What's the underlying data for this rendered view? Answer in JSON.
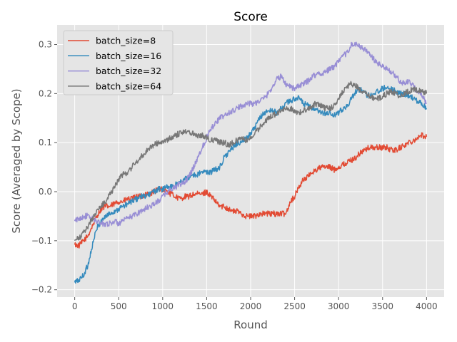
{
  "chart_data": {
    "type": "line",
    "title": "Score",
    "xlabel": "Round",
    "ylabel": "Score (Averaged by Scope)",
    "xlim": [
      -200,
      4200
    ],
    "ylim": [
      -0.215,
      0.34
    ],
    "xticks": [
      0,
      500,
      1000,
      1500,
      2000,
      2500,
      3000,
      3500,
      4000
    ],
    "xtick_labels": [
      "0",
      "500",
      "1000",
      "1500",
      "2000",
      "2500",
      "3000",
      "3500",
      "4000"
    ],
    "yticks": [
      -0.2,
      -0.1,
      0.0,
      0.1,
      0.2,
      0.3
    ],
    "ytick_labels": [
      "−0.2",
      "−0.1",
      "0.0",
      "0.1",
      "0.2",
      "0.3"
    ],
    "grid": true,
    "legend_position": "top-left",
    "series": [
      {
        "name": "batch_size=8",
        "color": "#E24A33",
        "x": [
          0,
          50,
          100,
          150,
          200,
          250,
          300,
          350,
          400,
          450,
          500,
          550,
          600,
          650,
          700,
          750,
          800,
          850,
          900,
          950,
          1000,
          1050,
          1100,
          1150,
          1200,
          1250,
          1300,
          1350,
          1400,
          1450,
          1500,
          1550,
          1600,
          1650,
          1700,
          1750,
          1800,
          1850,
          1900,
          1950,
          2000,
          2050,
          2100,
          2150,
          2200,
          2250,
          2300,
          2350,
          2400,
          2450,
          2500,
          2550,
          2600,
          2650,
          2700,
          2750,
          2800,
          2850,
          2900,
          2950,
          3000,
          3050,
          3100,
          3150,
          3200,
          3250,
          3300,
          3350,
          3400,
          3450,
          3500,
          3550,
          3600,
          3650,
          3700,
          3750,
          3800,
          3850,
          3900,
          3950,
          4000
        ],
        "y": [
          -0.108,
          -0.11,
          -0.1,
          -0.09,
          -0.07,
          -0.05,
          -0.035,
          -0.03,
          -0.03,
          -0.025,
          -0.02,
          -0.02,
          -0.015,
          -0.015,
          -0.01,
          -0.01,
          -0.005,
          -0.005,
          0.0,
          0.005,
          0.005,
          0.0,
          -0.005,
          -0.01,
          -0.015,
          -0.01,
          -0.01,
          -0.005,
          -0.005,
          -0.005,
          0.0,
          -0.01,
          -0.02,
          -0.03,
          -0.03,
          -0.035,
          -0.04,
          -0.04,
          -0.045,
          -0.05,
          -0.05,
          -0.05,
          -0.045,
          -0.045,
          -0.045,
          -0.045,
          -0.045,
          -0.045,
          -0.045,
          -0.02,
          -0.01,
          0.01,
          0.025,
          0.03,
          0.04,
          0.045,
          0.05,
          0.05,
          0.05,
          0.045,
          0.05,
          0.055,
          0.06,
          0.065,
          0.07,
          0.08,
          0.085,
          0.09,
          0.09,
          0.09,
          0.09,
          0.09,
          0.085,
          0.085,
          0.09,
          0.095,
          0.1,
          0.105,
          0.11,
          0.115,
          0.112
        ]
      },
      {
        "name": "batch_size=16",
        "color": "#348ABD",
        "x": [
          0,
          50,
          100,
          150,
          200,
          250,
          300,
          350,
          400,
          450,
          500,
          550,
          600,
          650,
          700,
          750,
          800,
          850,
          900,
          950,
          1000,
          1050,
          1100,
          1150,
          1200,
          1250,
          1300,
          1350,
          1400,
          1450,
          1500,
          1550,
          1600,
          1650,
          1700,
          1750,
          1800,
          1850,
          1900,
          1950,
          2000,
          2050,
          2100,
          2150,
          2200,
          2250,
          2300,
          2350,
          2400,
          2450,
          2500,
          2550,
          2600,
          2650,
          2700,
          2750,
          2800,
          2850,
          2900,
          2950,
          3000,
          3050,
          3100,
          3150,
          3200,
          3250,
          3300,
          3350,
          3400,
          3450,
          3500,
          3550,
          3600,
          3650,
          3700,
          3750,
          3800,
          3850,
          3900,
          3950,
          4000
        ],
        "y": [
          -0.185,
          -0.18,
          -0.17,
          -0.15,
          -0.11,
          -0.075,
          -0.06,
          -0.05,
          -0.045,
          -0.04,
          -0.035,
          -0.03,
          -0.025,
          -0.02,
          -0.015,
          -0.01,
          -0.01,
          -0.005,
          0.0,
          0.005,
          0.005,
          0.01,
          0.01,
          0.015,
          0.02,
          0.025,
          0.03,
          0.035,
          0.035,
          0.04,
          0.04,
          0.04,
          0.045,
          0.05,
          0.07,
          0.08,
          0.09,
          0.1,
          0.1,
          0.11,
          0.12,
          0.13,
          0.15,
          0.16,
          0.165,
          0.165,
          0.16,
          0.17,
          0.18,
          0.185,
          0.19,
          0.19,
          0.18,
          0.175,
          0.17,
          0.165,
          0.16,
          0.16,
          0.16,
          0.155,
          0.16,
          0.17,
          0.175,
          0.19,
          0.205,
          0.21,
          0.2,
          0.195,
          0.2,
          0.205,
          0.21,
          0.215,
          0.21,
          0.205,
          0.2,
          0.2,
          0.195,
          0.19,
          0.185,
          0.18,
          0.17
        ]
      },
      {
        "name": "batch_size=32",
        "color": "#988ED5",
        "x": [
          0,
          50,
          100,
          150,
          200,
          250,
          300,
          350,
          400,
          450,
          500,
          550,
          600,
          650,
          700,
          750,
          800,
          850,
          900,
          950,
          1000,
          1050,
          1100,
          1150,
          1200,
          1250,
          1300,
          1350,
          1400,
          1450,
          1500,
          1550,
          1600,
          1650,
          1700,
          1750,
          1800,
          1850,
          1900,
          1950,
          2000,
          2050,
          2100,
          2150,
          2200,
          2250,
          2300,
          2350,
          2400,
          2450,
          2500,
          2550,
          2600,
          2650,
          2700,
          2750,
          2800,
          2850,
          2900,
          2950,
          3000,
          3050,
          3100,
          3150,
          3200,
          3250,
          3300,
          3350,
          3400,
          3450,
          3500,
          3550,
          3600,
          3650,
          3700,
          3750,
          3800,
          3850,
          3900,
          3950,
          4000
        ],
        "y": [
          -0.06,
          -0.055,
          -0.05,
          -0.05,
          -0.055,
          -0.06,
          -0.065,
          -0.065,
          -0.065,
          -0.06,
          -0.065,
          -0.06,
          -0.055,
          -0.05,
          -0.045,
          -0.04,
          -0.035,
          -0.03,
          -0.025,
          -0.02,
          -0.01,
          0.0,
          0.005,
          0.01,
          0.015,
          0.02,
          0.03,
          0.05,
          0.07,
          0.09,
          0.11,
          0.13,
          0.14,
          0.15,
          0.155,
          0.16,
          0.165,
          0.17,
          0.175,
          0.18,
          0.18,
          0.18,
          0.185,
          0.19,
          0.2,
          0.215,
          0.23,
          0.235,
          0.22,
          0.215,
          0.21,
          0.215,
          0.22,
          0.225,
          0.235,
          0.24,
          0.24,
          0.245,
          0.25,
          0.255,
          0.265,
          0.275,
          0.285,
          0.3,
          0.3,
          0.295,
          0.29,
          0.28,
          0.27,
          0.26,
          0.255,
          0.25,
          0.245,
          0.235,
          0.225,
          0.22,
          0.225,
          0.215,
          0.205,
          0.195,
          0.18
        ]
      },
      {
        "name": "batch_size=64",
        "color": "#777777",
        "x": [
          0,
          50,
          100,
          150,
          200,
          250,
          300,
          350,
          400,
          450,
          500,
          550,
          600,
          650,
          700,
          750,
          800,
          850,
          900,
          950,
          1000,
          1050,
          1100,
          1150,
          1200,
          1250,
          1300,
          1350,
          1400,
          1450,
          1500,
          1550,
          1600,
          1650,
          1700,
          1750,
          1800,
          1850,
          1900,
          1950,
          2000,
          2050,
          2100,
          2150,
          2200,
          2250,
          2300,
          2350,
          2400,
          2450,
          2500,
          2550,
          2600,
          2650,
          2700,
          2750,
          2800,
          2850,
          2900,
          2950,
          3000,
          3050,
          3100,
          3150,
          3200,
          3250,
          3300,
          3350,
          3400,
          3450,
          3500,
          3550,
          3600,
          3650,
          3700,
          3750,
          3800,
          3850,
          3900,
          3950,
          4000
        ],
        "y": [
          -0.1,
          -0.095,
          -0.085,
          -0.07,
          -0.055,
          -0.04,
          -0.03,
          -0.02,
          -0.005,
          0.01,
          0.025,
          0.035,
          0.04,
          0.05,
          0.06,
          0.07,
          0.08,
          0.09,
          0.095,
          0.1,
          0.1,
          0.105,
          0.11,
          0.115,
          0.12,
          0.125,
          0.12,
          0.12,
          0.115,
          0.115,
          0.11,
          0.105,
          0.105,
          0.1,
          0.1,
          0.095,
          0.1,
          0.105,
          0.11,
          0.105,
          0.11,
          0.12,
          0.13,
          0.14,
          0.15,
          0.155,
          0.16,
          0.165,
          0.17,
          0.17,
          0.165,
          0.16,
          0.165,
          0.17,
          0.175,
          0.18,
          0.175,
          0.17,
          0.17,
          0.175,
          0.19,
          0.205,
          0.215,
          0.22,
          0.215,
          0.205,
          0.2,
          0.195,
          0.19,
          0.19,
          0.195,
          0.2,
          0.205,
          0.2,
          0.195,
          0.2,
          0.205,
          0.21,
          0.205,
          0.205,
          0.2
        ]
      }
    ]
  }
}
